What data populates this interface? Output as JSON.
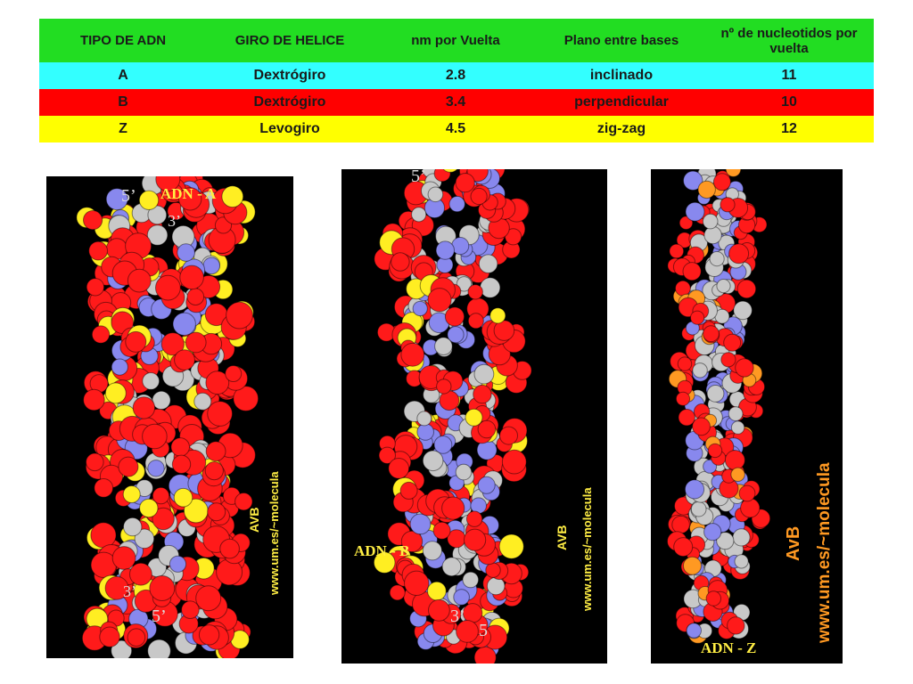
{
  "table": {
    "headers": [
      "TIPO DE ADN",
      "GIRO DE HELICE",
      "nm por Vuelta",
      "Plano entre bases",
      "nº de nucleotidos por vuelta"
    ],
    "rows": [
      {
        "cells": [
          "A",
          "Dextrógiro",
          "2.8",
          "inclinado",
          "11"
        ],
        "color": "#33ffff"
      },
      {
        "cells": [
          "B",
          "Dextrógiro",
          "3.4",
          "perpendicular",
          "10"
        ],
        "color": "#ff0000"
      },
      {
        "cells": [
          "Z",
          "Levogiro",
          "4.5",
          "zig-zag",
          "12"
        ],
        "color": "#ffff00"
      }
    ],
    "header_color": "#22dd22"
  },
  "panels": [
    {
      "title": "ADN - A",
      "credit": "AVB",
      "url": "www.um.es/~molecula",
      "end_top": "5’",
      "end_top2": "3’",
      "end_bottom": "3’",
      "end_bottom2": "5’"
    },
    {
      "title": "ADN - B",
      "credit": "AVB",
      "url": "www.um.es/~molecula",
      "end_top": "5’",
      "end_bottom": "3’",
      "end_bottom2": "5"
    },
    {
      "title": "ADN - Z",
      "credit": "AvB",
      "url": "www.um.es/~molecula"
    }
  ],
  "colors": {
    "oxygen": "#ff1a1a",
    "phosphorus": "#ffee22",
    "nitrogen": "#8888ee",
    "carbon": "#c8c8c8",
    "phosphorus_z": "#ff9922",
    "label_A_B": "#ffee44",
    "label_Z": "#ff9922",
    "panel_bg": "#000000"
  }
}
